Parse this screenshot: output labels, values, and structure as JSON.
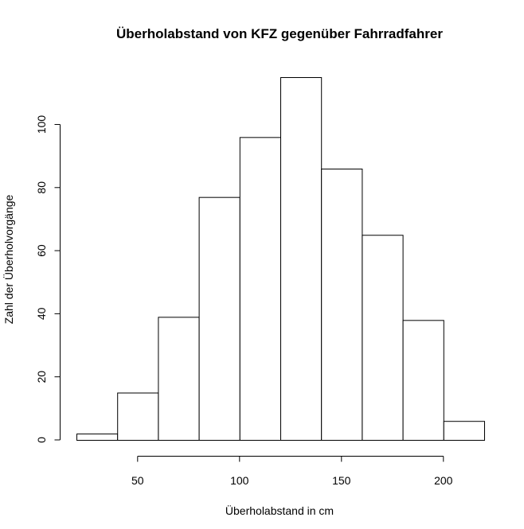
{
  "chart_data": {
    "type": "histogram",
    "title": "Überholabstand von KFZ gegenüber Fahrradfahrer",
    "xlabel": "Überholabstand in cm",
    "ylabel": "Zahl der Überholvorgänge",
    "bins": [
      {
        "start": 20,
        "end": 40,
        "count": 2
      },
      {
        "start": 40,
        "end": 60,
        "count": 15
      },
      {
        "start": 60,
        "end": 80,
        "count": 39
      },
      {
        "start": 80,
        "end": 100,
        "count": 77
      },
      {
        "start": 100,
        "end": 120,
        "count": 96
      },
      {
        "start": 120,
        "end": 140,
        "count": 115
      },
      {
        "start": 140,
        "end": 160,
        "count": 86
      },
      {
        "start": 160,
        "end": 180,
        "count": 65
      },
      {
        "start": 180,
        "end": 200,
        "count": 38
      },
      {
        "start": 200,
        "end": 220,
        "count": 6
      }
    ],
    "xlim": [
      20,
      220
    ],
    "ylim": [
      0,
      115
    ],
    "x_ticks": [
      50,
      100,
      150,
      200
    ],
    "y_ticks": [
      0,
      20,
      40,
      60,
      80,
      100
    ],
    "grid": false,
    "colors": {
      "bar_fill": "#ffffff",
      "bar_stroke": "#000000"
    }
  }
}
